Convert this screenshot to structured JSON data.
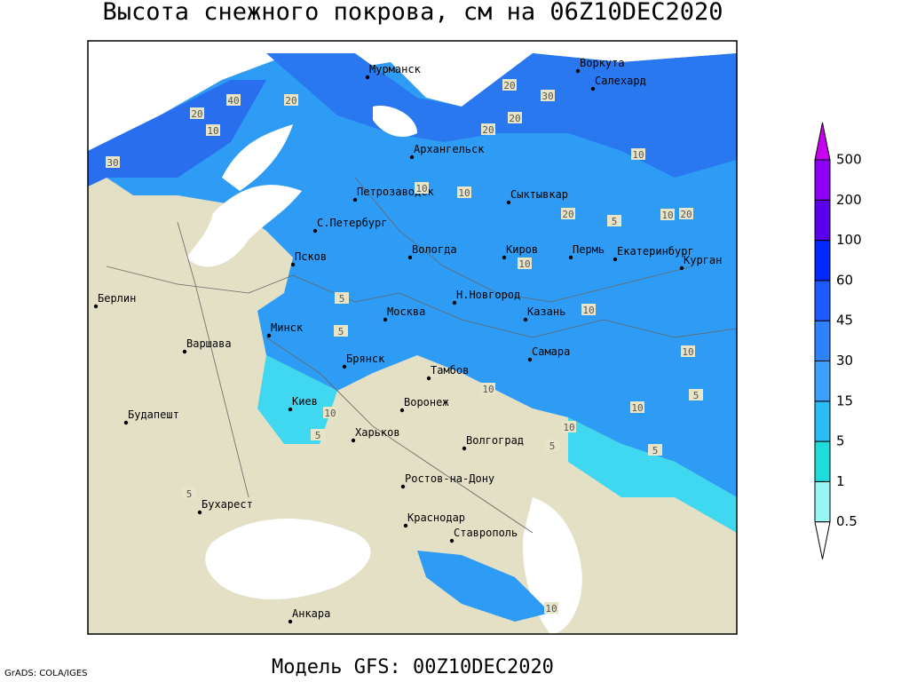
{
  "title": "Высота снежного покрова, см на 06Z10DEC2020",
  "footer": {
    "credit": "GrADS: COLA/IGES",
    "model": "Модель GFS: 00Z10DEC2020"
  },
  "legend": {
    "levels": [
      0.5,
      1,
      5,
      15,
      30,
      45,
      60,
      100,
      200,
      500
    ],
    "colors": [
      "#ffffff",
      "#9af5f5",
      "#1edcdc",
      "#28bef5",
      "#3ca0ff",
      "#2d82ff",
      "#1e5aff",
      "#0028ff",
      "#5a00f0",
      "#8c00f5",
      "#c800f0"
    ]
  },
  "cities": [
    "Мурманск",
    "Воркута",
    "Салехард",
    "Архангельск",
    "Петрозаводск",
    "Сыктывкар",
    "С.Петербург",
    "Вологда",
    "Киров",
    "Пермь",
    "Екатеринбург",
    "Курган",
    "Псков",
    "Берлин",
    "Н.Новгород",
    "Москва",
    "Казань",
    "Минск",
    "Варшава",
    "Брянск",
    "Самара",
    "Тамбов",
    "Киев",
    "Воронеж",
    "Харьков",
    "Будапешт",
    "Волгоград",
    "Ростов-на-Дону",
    "Бухарест",
    "Краснодар",
    "Ставрополь",
    "Анкара"
  ],
  "contour_labels": [
    40,
    20,
    10,
    30,
    20,
    20,
    30,
    20,
    20,
    10,
    10,
    10,
    20,
    5,
    10,
    20,
    10,
    5,
    5,
    10,
    10,
    10,
    5,
    10,
    10,
    5,
    10,
    5,
    5,
    5,
    10
  ]
}
